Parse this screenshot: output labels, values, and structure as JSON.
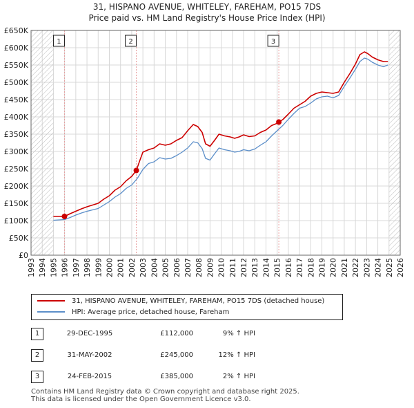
{
  "header": {
    "line1": "31, HISPANO AVENUE, WHITELEY, FAREHAM, PO15 7DS",
    "line2": "Price paid vs. HM Land Registry's House Price Index (HPI)"
  },
  "chart_data": {
    "type": "line",
    "title": "31, HISPANO AVENUE, WHITELEY, FAREHAM, PO15 7DS",
    "subtitle": "Price paid vs. HM Land Registry's House Price Index (HPI)",
    "xlabel": "",
    "ylabel": "",
    "xlim": [
      1993,
      2026
    ],
    "ylim": [
      0,
      650000
    ],
    "x_ticks": [
      1993,
      1994,
      1995,
      1996,
      1997,
      1998,
      1999,
      2000,
      2001,
      2002,
      2003,
      2004,
      2005,
      2006,
      2007,
      2008,
      2009,
      2010,
      2011,
      2012,
      2013,
      2014,
      2015,
      2016,
      2017,
      2018,
      2019,
      2020,
      2021,
      2022,
      2023,
      2024,
      2025,
      2026
    ],
    "y_ticks": [
      0,
      50000,
      100000,
      150000,
      200000,
      250000,
      300000,
      350000,
      400000,
      450000,
      500000,
      550000,
      600000,
      650000
    ],
    "y_tick_labels": [
      "£0",
      "£50K",
      "£100K",
      "£150K",
      "£200K",
      "£250K",
      "£300K",
      "£350K",
      "£400K",
      "£450K",
      "£500K",
      "£550K",
      "£600K",
      "£650K"
    ],
    "grid": true,
    "hatched_before": 1995.0,
    "hatched_after": 2025.0,
    "colors": {
      "property": "#cc0000",
      "hpi": "#5b8ec9",
      "marker_line": "#e8a0a0"
    },
    "series": [
      {
        "name": "31, HISPANO AVENUE, WHITELEY, FAREHAM, PO15 7DS (detached house)",
        "x": [
          1995.0,
          1995.99,
          1996.5,
          1997.0,
          1997.5,
          1998.0,
          1998.5,
          1999.0,
          1999.5,
          2000.0,
          2000.5,
          2001.0,
          2001.5,
          2002.0,
          2002.41,
          2002.7,
          2003.0,
          2003.5,
          2004.0,
          2004.5,
          2005.0,
          2005.5,
          2006.0,
          2006.5,
          2007.0,
          2007.5,
          2007.9,
          2008.3,
          2008.6,
          2009.0,
          2009.4,
          2009.8,
          2010.3,
          2010.8,
          2011.2,
          2011.6,
          2012.0,
          2012.5,
          2013.0,
          2013.5,
          2014.0,
          2014.5,
          2014.9,
          2015.15,
          2015.5,
          2016.0,
          2016.5,
          2017.0,
          2017.5,
          2018.0,
          2018.5,
          2019.0,
          2019.5,
          2020.0,
          2020.5,
          2021.0,
          2021.5,
          2022.0,
          2022.4,
          2022.8,
          2023.1,
          2023.5,
          2024.0,
          2024.5,
          2024.9
        ],
        "values": [
          112000,
          112000,
          120000,
          127000,
          134000,
          140000,
          145000,
          150000,
          162000,
          172000,
          188000,
          198000,
          215000,
          228000,
          245000,
          272000,
          298000,
          305000,
          310000,
          322000,
          318000,
          322000,
          332000,
          340000,
          360000,
          378000,
          372000,
          355000,
          322000,
          315000,
          332000,
          350000,
          345000,
          342000,
          338000,
          342000,
          348000,
          343000,
          345000,
          355000,
          362000,
          375000,
          380000,
          385000,
          392000,
          408000,
          425000,
          435000,
          445000,
          460000,
          468000,
          472000,
          470000,
          468000,
          472000,
          500000,
          525000,
          553000,
          580000,
          588000,
          583000,
          573000,
          565000,
          560000,
          560000
        ]
      },
      {
        "name": "HPI: Average price, detached house, Fareham",
        "x": [
          1995.0,
          1995.5,
          1996.0,
          1996.5,
          1997.0,
          1997.5,
          1998.0,
          1998.5,
          1999.0,
          1999.5,
          2000.0,
          2000.5,
          2001.0,
          2001.5,
          2002.0,
          2002.5,
          2003.0,
          2003.5,
          2004.0,
          2004.5,
          2005.0,
          2005.5,
          2006.0,
          2006.5,
          2007.0,
          2007.5,
          2007.9,
          2008.3,
          2008.6,
          2009.0,
          2009.4,
          2009.8,
          2010.3,
          2010.8,
          2011.2,
          2011.6,
          2012.0,
          2012.5,
          2013.0,
          2013.5,
          2014.0,
          2014.5,
          2015.0,
          2015.5,
          2016.0,
          2016.5,
          2017.0,
          2017.5,
          2018.0,
          2018.5,
          2019.0,
          2019.5,
          2020.0,
          2020.5,
          2021.0,
          2021.5,
          2022.0,
          2022.4,
          2022.8,
          2023.1,
          2023.5,
          2024.0,
          2024.5,
          2024.9
        ],
        "values": [
          101000,
          102000,
          103000,
          109000,
          116000,
          122000,
          127000,
          131000,
          135000,
          145000,
          155000,
          168000,
          178000,
          193000,
          203000,
          222000,
          248000,
          265000,
          270000,
          282000,
          278000,
          280000,
          288000,
          298000,
          310000,
          328000,
          325000,
          308000,
          280000,
          275000,
          293000,
          310000,
          305000,
          302000,
          298000,
          300000,
          305000,
          302000,
          307000,
          318000,
          328000,
          345000,
          360000,
          375000,
          393000,
          410000,
          425000,
          430000,
          440000,
          452000,
          458000,
          460000,
          455000,
          462000,
          488000,
          512000,
          538000,
          560000,
          570000,
          567000,
          558000,
          550000,
          545000,
          550000
        ]
      }
    ],
    "annotations": [
      {
        "label": "1",
        "x": 1995.99,
        "y": 112000
      },
      {
        "label": "2",
        "x": 2002.41,
        "y": 245000
      },
      {
        "label": "3",
        "x": 2015.15,
        "y": 385000
      }
    ]
  },
  "legend": {
    "property_label": "31, HISPANO AVENUE, WHITELEY, FAREHAM, PO15 7DS (detached house)",
    "hpi_label": "HPI: Average price, detached house, Fareham"
  },
  "transactions": [
    {
      "num": "1",
      "date": "29-DEC-1995",
      "price": "£112,000",
      "hpi": "9% ↑ HPI"
    },
    {
      "num": "2",
      "date": "31-MAY-2002",
      "price": "£245,000",
      "hpi": "12% ↑ HPI"
    },
    {
      "num": "3",
      "date": "24-FEB-2015",
      "price": "£385,000",
      "hpi": "2% ↑ HPI"
    }
  ],
  "footer": {
    "line1": "Contains HM Land Registry data © Crown copyright and database right 2025.",
    "line2": "This data is licensed under the Open Government Licence v3.0."
  }
}
